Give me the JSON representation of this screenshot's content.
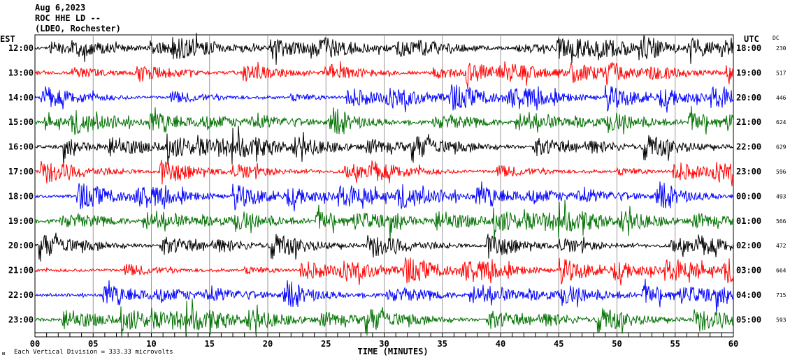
{
  "header": {
    "date": "Aug 6,2023",
    "station": "ROC HHE LD --",
    "network": "(LDEO, Rochester)"
  },
  "chart_data": {
    "type": "line",
    "title": "Aug 6,2023",
    "left_axis_label": "EST",
    "right_axis_label": "UTC",
    "dc_label": "DC",
    "xlabel": "TIME (MINUTES)",
    "xlim": [
      0,
      60
    ],
    "x_ticks": [
      "00",
      "05",
      "10",
      "15",
      "20",
      "25",
      "30",
      "35",
      "40",
      "45",
      "50",
      "55",
      "60"
    ],
    "grid": true,
    "colors": [
      "#000000",
      "#ff0000",
      "#0000ff",
      "#007000"
    ],
    "rows": [
      {
        "est": "12:00",
        "utc": "18:00",
        "dc": "230"
      },
      {
        "est": "13:00",
        "utc": "19:00",
        "dc": "517"
      },
      {
        "est": "14:00",
        "utc": "20:00",
        "dc": "446"
      },
      {
        "est": "15:00",
        "utc": "21:00",
        "dc": "624"
      },
      {
        "est": "16:00",
        "utc": "22:00",
        "dc": "629"
      },
      {
        "est": "17:00",
        "utc": "23:00",
        "dc": "596"
      },
      {
        "est": "18:00",
        "utc": "00:00",
        "dc": "493"
      },
      {
        "est": "19:00",
        "utc": "01:00",
        "dc": "566"
      },
      {
        "est": "20:00",
        "utc": "02:00",
        "dc": "472"
      },
      {
        "est": "21:00",
        "utc": "03:00",
        "dc": "664"
      },
      {
        "est": "22:00",
        "utc": "04:00",
        "dc": "715"
      },
      {
        "est": "23:00",
        "utc": "05:00",
        "dc": "593"
      }
    ],
    "scale_note": "Each Vertical Division =  333.33 microvolts"
  },
  "footer": {
    "logo_mark": "M"
  }
}
